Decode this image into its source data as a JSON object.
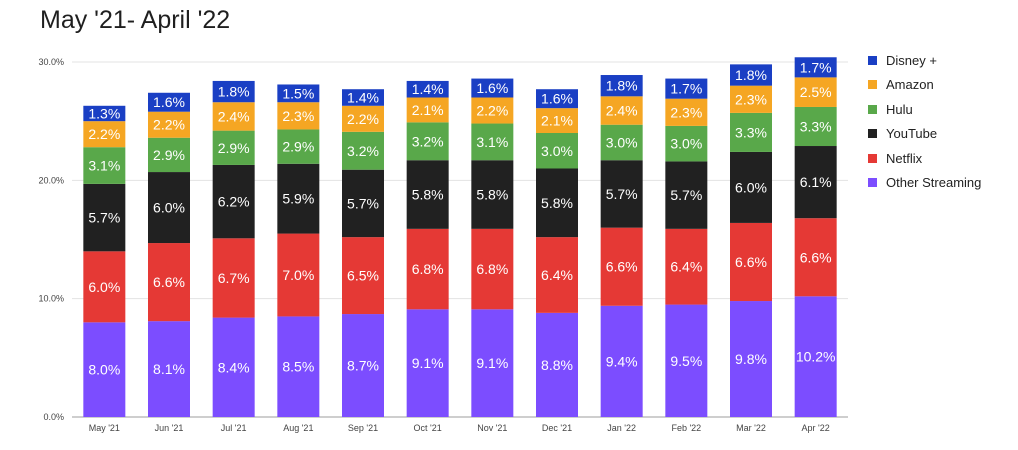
{
  "title": "May '21- April '22",
  "chart_data": {
    "type": "bar",
    "stacked": true,
    "title": "May '21- April '22",
    "categories": [
      "May '21",
      "Jun '21",
      "Jul '21",
      "Aug '21",
      "Sep '21",
      "Oct '21",
      "Nov '21",
      "Dec '21",
      "Jan '22",
      "Feb '22",
      "Mar '22",
      "Apr '22"
    ],
    "yticks": [
      "0.0%",
      "10.0%",
      "20.0%",
      "30.0%"
    ],
    "ylim": [
      0,
      30
    ],
    "grid": true,
    "legend_position": "right",
    "series": [
      {
        "name": "Other Streaming",
        "color": "#7c4dff",
        "values": [
          8.0,
          8.1,
          8.4,
          8.5,
          8.7,
          9.1,
          9.1,
          8.8,
          9.4,
          9.5,
          9.8,
          10.2
        ],
        "labels": [
          "8.0%",
          "8.1%",
          "8.4%",
          "8.5%",
          "8.7%",
          "9.1%",
          "9.1%",
          "8.8%",
          "9.4%",
          "9.5%",
          "9.8%",
          "10.2%"
        ]
      },
      {
        "name": "Netflix",
        "color": "#e53935",
        "values": [
          6.0,
          6.6,
          6.7,
          7.0,
          6.5,
          6.8,
          6.8,
          6.4,
          6.6,
          6.4,
          6.6,
          6.6
        ],
        "labels": [
          "6.0%",
          "6.6%",
          "6.7%",
          "7.0%",
          "6.5%",
          "6.8%",
          "6.8%",
          "6.4%",
          "6.6%",
          "6.4%",
          "6.6%",
          "6.6%"
        ]
      },
      {
        "name": "YouTube",
        "color": "#212121",
        "values": [
          5.7,
          6.0,
          6.2,
          5.9,
          5.7,
          5.8,
          5.8,
          5.8,
          5.7,
          5.7,
          6.0,
          6.1
        ],
        "labels": [
          "5.7%",
          "6.0%",
          "6.2%",
          "5.9%",
          "5.7%",
          "5.8%",
          "5.8%",
          "5.8%",
          "5.7%",
          "5.7%",
          "6.0%",
          "6.1%"
        ]
      },
      {
        "name": "Hulu",
        "color": "#59a84a",
        "values": [
          3.1,
          2.9,
          2.9,
          2.9,
          3.2,
          3.2,
          3.1,
          3.0,
          3.0,
          3.0,
          3.3,
          3.3
        ],
        "labels": [
          "3.1%",
          "2.9%",
          "2.9%",
          "2.9%",
          "3.2%",
          "3.2%",
          "3.1%",
          "3.0%",
          "3.0%",
          "3.0%",
          "3.3%",
          "3.3%"
        ]
      },
      {
        "name": "Amazon",
        "color": "#f5a623",
        "values": [
          2.2,
          2.2,
          2.4,
          2.3,
          2.2,
          2.1,
          2.2,
          2.1,
          2.4,
          2.3,
          2.3,
          2.5
        ],
        "labels": [
          "2.2%",
          "2.2%",
          "2.4%",
          "2.3%",
          "2.2%",
          "2.1%",
          "2.2%",
          "2.1%",
          "2.4%",
          "2.3%",
          "2.3%",
          "2.5%"
        ]
      },
      {
        "name": "Disney +",
        "color": "#1a3fc4",
        "values": [
          1.3,
          1.6,
          1.8,
          1.5,
          1.4,
          1.4,
          1.6,
          1.6,
          1.8,
          1.7,
          1.8,
          1.7
        ],
        "labels": [
          "1.3%",
          "1.6%",
          "1.8%",
          "1.5%",
          "1.4%",
          "1.4%",
          "1.6%",
          "1.6%",
          "1.8%",
          "1.7%",
          "1.8%",
          "1.7%"
        ]
      }
    ]
  },
  "legend": [
    {
      "label": "Disney +",
      "color": "#1a3fc4"
    },
    {
      "label": "Amazon",
      "color": "#f5a623"
    },
    {
      "label": "Hulu",
      "color": "#59a84a"
    },
    {
      "label": "YouTube",
      "color": "#212121"
    },
    {
      "label": "Netflix",
      "color": "#e53935"
    },
    {
      "label": "Other Streaming",
      "color": "#7c4dff"
    }
  ]
}
